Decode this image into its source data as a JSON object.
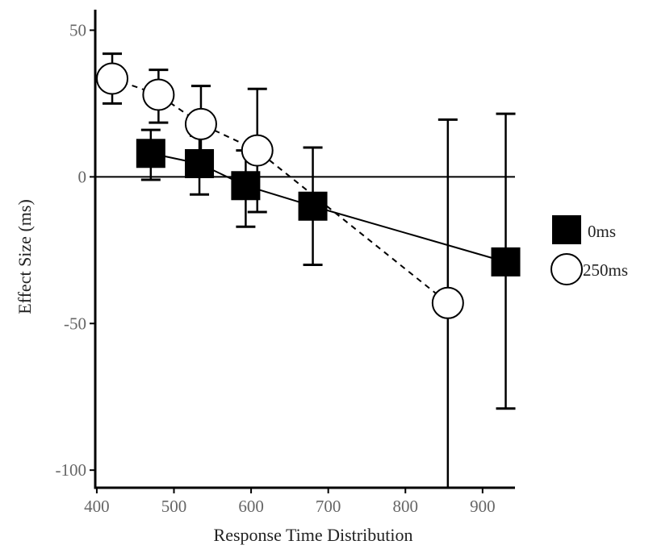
{
  "chart_data": {
    "type": "scatter",
    "title": "",
    "xlabel": "Response Time Distribution",
    "ylabel": "Effect Size  (ms)",
    "xlim": [
      398,
      942
    ],
    "ylim": [
      -106,
      57
    ],
    "x_ticks": [
      400,
      500,
      600,
      700,
      800,
      900
    ],
    "y_ticks": [
      50,
      0,
      -50,
      -100
    ],
    "reference_line_y": 0,
    "grid": false,
    "legend_position": "right",
    "series": [
      {
        "name": "0ms",
        "marker": "filled-square",
        "line": "solid",
        "color": "#000000",
        "points": [
          {
            "x": 470,
            "y": 8,
            "err_low": -1,
            "err_high": 16
          },
          {
            "x": 533,
            "y": 4.5,
            "err_low": -6,
            "err_high": 14
          },
          {
            "x": 593,
            "y": -3,
            "err_low": -17,
            "err_high": 9
          },
          {
            "x": 680,
            "y": -10,
            "err_low": -30,
            "err_high": 10
          },
          {
            "x": 930,
            "y": -29,
            "err_low": -79,
            "err_high": 21.5
          }
        ]
      },
      {
        "name": "250ms",
        "marker": "open-circle",
        "line": "dashed",
        "color": "#000000",
        "points": [
          {
            "x": 420,
            "y": 33.5,
            "err_low": 25,
            "err_high": 42
          },
          {
            "x": 480,
            "y": 28,
            "err_low": 18.5,
            "err_high": 36.5
          },
          {
            "x": 535,
            "y": 18,
            "err_low": 6.5,
            "err_high": 31
          },
          {
            "x": 608,
            "y": 9,
            "err_low": -12,
            "err_high": 30
          },
          {
            "x": 855,
            "y": -43,
            "err_low": -106,
            "err_high": 19.5
          }
        ]
      }
    ]
  }
}
